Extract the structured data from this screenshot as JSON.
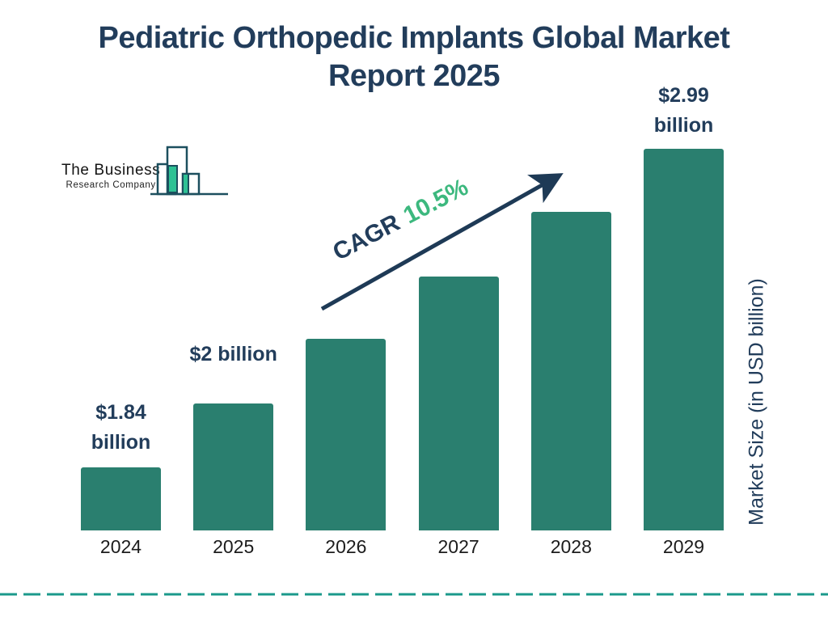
{
  "page": {
    "title_line1": "Pediatric Orthopedic Implants Global Market",
    "title_line2": "Report 2025"
  },
  "logo": {
    "name_line1": "The Business",
    "name_line2": "Research Company"
  },
  "annotation": {
    "cagr_label": "CAGR",
    "cagr_value": "10.5%"
  },
  "axis": {
    "y_label": "Market Size (in USD billion)"
  },
  "colors": {
    "title": "#223D5B",
    "bar": "#2A7F6F",
    "cagr_green": "#3CB87E",
    "arrow": "#1E3A56",
    "dashed_line": "#1B998B",
    "year_label": "#1C1C1C",
    "logo_outline": "#1C4F5E",
    "logo_green": "#2EC194"
  },
  "chart_data": {
    "type": "bar",
    "title": "Pediatric Orthopedic Implants Global Market Report 2025",
    "categories": [
      "2024",
      "2025",
      "2026",
      "2027",
      "2028",
      "2029"
    ],
    "values": [
      1.84,
      2.0,
      null,
      null,
      null,
      2.99
    ],
    "value_labels": [
      [
        "$1.84",
        "billion"
      ],
      [
        "$2 billion"
      ],
      [],
      [],
      [],
      [
        "$2.99",
        "billion"
      ]
    ],
    "cagr": "10.5%",
    "xlabel": "",
    "ylabel": "Market Size (in USD billion)",
    "legend": false,
    "grid": false
  }
}
